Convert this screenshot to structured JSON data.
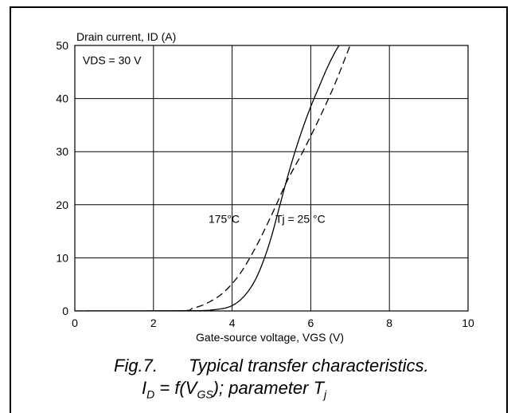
{
  "chart_data": {
    "type": "line",
    "ylabel": "Drain current, ID (A)",
    "xlabel": "Gate-source voltage, VGS (V)",
    "xlim": [
      0,
      10
    ],
    "ylim": [
      0,
      50
    ],
    "xticks": [
      "0",
      "2",
      "4",
      "6",
      "8",
      "10"
    ],
    "yticks": [
      "0",
      "10",
      "20",
      "30",
      "40",
      "50"
    ],
    "grid": true,
    "annotations": {
      "condition": "VDS = 30 V",
      "label_175": "175°C",
      "label_25": "Tj = 25 °C"
    },
    "series": [
      {
        "name": "Tj = 25 °C",
        "style": "solid",
        "x": [
          0,
          3.0,
          3.5,
          3.8,
          4.0,
          4.2,
          4.4,
          4.6,
          4.8,
          5.0,
          5.2,
          5.4,
          5.6,
          5.8,
          6.0,
          6.2,
          6.4,
          6.6,
          6.8
        ],
        "y": [
          0,
          0.05,
          0.2,
          0.5,
          1.0,
          2.0,
          3.6,
          6.0,
          9.5,
          14.0,
          19.5,
          25.0,
          30.0,
          34.5,
          38.5,
          42.0,
          45.5,
          48.5,
          51.0
        ]
      },
      {
        "name": "175°C",
        "style": "dashed",
        "x": [
          0,
          2.6,
          3.0,
          3.4,
          3.8,
          4.2,
          4.6,
          5.0,
          5.4,
          5.8,
          6.2,
          6.6,
          7.0
        ],
        "y": [
          0,
          0,
          0.5,
          1.6,
          3.6,
          7.0,
          12.0,
          18.0,
          24.5,
          30.0,
          36.0,
          42.5,
          50.0
        ]
      }
    ]
  },
  "caption": {
    "fig_label": "Fig.7.",
    "title": "Typical transfer characteristics.",
    "formula_i": "I",
    "formula_d": "D",
    "formula_mid": " = f(V",
    "formula_gs": "GS",
    "formula_end": "); parameter T",
    "formula_j": "j"
  }
}
